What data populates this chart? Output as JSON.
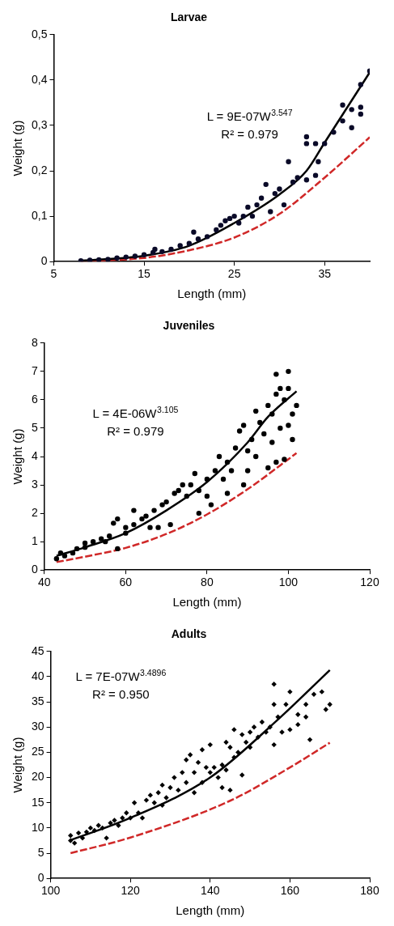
{
  "chart_data": [
    {
      "type": "scatter",
      "title": "Larvae",
      "xlabel": "Length (mm)",
      "ylabel": "Weight (g)",
      "xlim": [
        5,
        40
      ],
      "xticks": [
        5,
        15,
        25,
        35
      ],
      "ylim": [
        0,
        0.5
      ],
      "yticks": [
        0,
        {
          "value": 0.1,
          "label": "0,1"
        },
        {
          "value": 0.2,
          "label": "0,2"
        },
        {
          "value": 0.3,
          "label": "0,3"
        },
        {
          "value": 0.4,
          "label": "0,4"
        },
        {
          "value": 0.5,
          "label": "0,5"
        }
      ],
      "annotations": [
        "L = 9E-07W$^{3.547}$",
        "R² = 0.979"
      ],
      "series": [
        {
          "marker": "circle",
          "color": "#0a0a28",
          "x": [
            8,
            9,
            10,
            11,
            12,
            13,
            14,
            15,
            16,
            16.2,
            17,
            18,
            19,
            20,
            20.5,
            21,
            22,
            23,
            23.5,
            24,
            24.5,
            25,
            25.5,
            26,
            26.5,
            27,
            27.5,
            28,
            28.5,
            29,
            29.5,
            30,
            30.5,
            31,
            31.5,
            32,
            33,
            33,
            33,
            34,
            34,
            34.3,
            35,
            36,
            37,
            37,
            38,
            38,
            39,
            39,
            39,
            40
          ],
          "values": [
            0.002,
            0.003,
            0.004,
            0.005,
            0.008,
            0.01,
            0.012,
            0.015,
            0.02,
            0.027,
            0.022,
            0.027,
            0.035,
            0.04,
            0.065,
            0.05,
            0.055,
            0.07,
            0.08,
            0.09,
            0.095,
            0.1,
            0.085,
            0.1,
            0.12,
            0.1,
            0.125,
            0.14,
            0.17,
            0.11,
            0.15,
            0.16,
            0.125,
            0.22,
            0.175,
            0.185,
            0.275,
            0.26,
            0.18,
            0.26,
            0.19,
            0.22,
            0.26,
            0.285,
            0.345,
            0.31,
            0.335,
            0.295,
            0.39,
            0.34,
            0.325,
            0.42
          ]
        },
        {
          "type": "line",
          "color": "#000000",
          "x": [
            8,
            15,
            20,
            25,
            30,
            33,
            35,
            40
          ],
          "values": [
            0.002,
            0.013,
            0.035,
            0.085,
            0.148,
            0.2,
            0.262,
            0.417
          ]
        },
        {
          "type": "line",
          "color": "#d02828",
          "line_style": "dashed",
          "x": [
            8,
            15,
            20,
            25,
            30,
            35,
            40
          ],
          "values": [
            0.001,
            0.008,
            0.025,
            0.053,
            0.105,
            0.185,
            0.274
          ]
        }
      ]
    },
    {
      "type": "scatter",
      "title": "Juveniles",
      "xlabel": "Length (mm)",
      "ylabel": "Weight (g)",
      "xlim": [
        40,
        120
      ],
      "xticks": [
        40,
        60,
        80,
        100,
        120
      ],
      "ylim": [
        0,
        8
      ],
      "yticks": [
        0,
        1,
        2,
        3,
        4,
        5,
        6,
        7,
        8
      ],
      "annotations": [
        "L = 4E-06W$^{3.105}$",
        "R² = 0.979"
      ],
      "series": [
        {
          "marker": "circle",
          "color": "#000000",
          "x": [
            43,
            44,
            45,
            47,
            48,
            50,
            50,
            52,
            54,
            55,
            56,
            57,
            58,
            58,
            60,
            60,
            62,
            62,
            64,
            65,
            66,
            67,
            68,
            69,
            70,
            71,
            72,
            73,
            74,
            75,
            76,
            77,
            78,
            78,
            80,
            80,
            81,
            82,
            83,
            84,
            85,
            85,
            86,
            87,
            88,
            89,
            89,
            90,
            90,
            91,
            92,
            92,
            93,
            94,
            95,
            95,
            96,
            96,
            97,
            97,
            97,
            98,
            98,
            99,
            99,
            100,
            100,
            100,
            101,
            101,
            102
          ],
          "values": [
            0.4,
            0.6,
            0.5,
            0.6,
            0.75,
            0.8,
            0.95,
            1.0,
            1.1,
            1.0,
            1.2,
            1.65,
            1.8,
            0.75,
            1.3,
            1.5,
            2.1,
            1.6,
            1.8,
            1.9,
            1.5,
            2.1,
            1.5,
            2.3,
            2.4,
            1.6,
            2.7,
            2.8,
            3.0,
            2.6,
            3.0,
            3.4,
            2.0,
            2.8,
            3.2,
            2.6,
            2.3,
            3.5,
            4.0,
            3.2,
            3.8,
            2.7,
            3.5,
            4.3,
            4.9,
            5.1,
            3.0,
            4.2,
            3.5,
            4.6,
            5.6,
            4.0,
            5.2,
            4.8,
            5.8,
            3.6,
            5.5,
            4.5,
            6.9,
            6.2,
            3.8,
            6.4,
            5.0,
            6.0,
            3.9,
            7.0,
            6.4,
            5.1,
            5.5,
            4.6,
            5.8
          ]
        },
        {
          "type": "line",
          "color": "#000000",
          "x": [
            43,
            50,
            60,
            70,
            80,
            90,
            95,
            102
          ],
          "values": [
            0.5,
            0.8,
            1.3,
            2.1,
            3.1,
            4.5,
            5.4,
            6.3
          ]
        },
        {
          "type": "line",
          "color": "#d02828",
          "line_style": "dashed",
          "x": [
            43,
            50,
            60,
            70,
            80,
            90,
            102
          ],
          "values": [
            0.28,
            0.47,
            0.78,
            1.27,
            1.96,
            2.85,
            4.12
          ]
        }
      ]
    },
    {
      "type": "scatter",
      "title": "Adults",
      "xlabel": "Length (mm)",
      "ylabel": "Weight (g)",
      "xlim": [
        100,
        180
      ],
      "xticks": [
        100,
        120,
        140,
        160,
        180
      ],
      "ylim": [
        0,
        45
      ],
      "yticks": [
        0,
        5,
        10,
        15,
        20,
        25,
        30,
        35,
        40,
        45
      ],
      "annotations": [
        "L = 7E-07W$^{3.4896}$",
        "R² = 0.950"
      ],
      "series": [
        {
          "marker": "diamond",
          "color": "#000000",
          "x": [
            105,
            105,
            106,
            107,
            108,
            109,
            110,
            111,
            112,
            113,
            114,
            115,
            116,
            117,
            118,
            119,
            120,
            121,
            122,
            123,
            124,
            125,
            126,
            127,
            128,
            128,
            129,
            130,
            131,
            132,
            133,
            134,
            134,
            135,
            136,
            136,
            137,
            138,
            138,
            139,
            140,
            140,
            141,
            142,
            143,
            143,
            144,
            144,
            145,
            145,
            146,
            146,
            147,
            148,
            148,
            149,
            150,
            150,
            151,
            152,
            153,
            154,
            155,
            156,
            156,
            156,
            157,
            158,
            159,
            160,
            160,
            162,
            162,
            164,
            164,
            165,
            166,
            168,
            169,
            170
          ],
          "values": [
            7.5,
            8.5,
            7,
            9,
            8,
            9.2,
            10,
            9.5,
            10.5,
            10,
            8,
            11,
            11.5,
            10.5,
            12,
            13,
            12,
            15,
            13,
            12,
            15.5,
            16.5,
            15,
            17,
            18.5,
            14.5,
            16,
            18,
            20,
            17.5,
            21,
            23.5,
            19,
            24.5,
            17,
            21,
            23,
            25.5,
            19,
            22,
            26.5,
            21,
            22,
            20,
            22.5,
            18,
            27,
            21.5,
            26,
            17.5,
            29.5,
            24,
            25,
            28.5,
            20.5,
            27,
            26,
            29,
            30,
            28,
            31,
            29,
            30,
            38.5,
            34.5,
            26.5,
            32,
            29,
            34.5,
            37,
            29.5,
            32.5,
            30.5,
            34.5,
            32,
            27.5,
            36.5,
            37,
            33.5,
            34.5
          ]
        },
        {
          "type": "line",
          "color": "#000000",
          "x": [
            105,
            120,
            140,
            157,
            170
          ],
          "values": [
            7.6,
            12,
            20,
            31.5,
            41.3
          ]
        },
        {
          "type": "line",
          "color": "#d02828",
          "line_style": "dashed",
          "x": [
            105,
            120,
            145,
            160,
            170
          ],
          "values": [
            5,
            8.1,
            15.4,
            22,
            26.9
          ]
        }
      ]
    }
  ]
}
